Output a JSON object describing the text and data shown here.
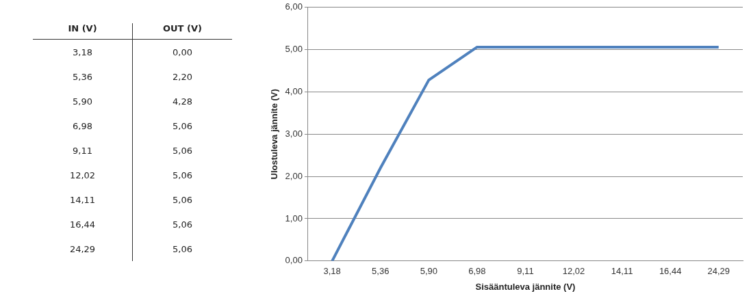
{
  "chart_data": [
    {
      "type": "other",
      "annotations": [
        "IN (V)",
        "OUT (V)",
        "3,18",
        "0,00",
        "5,36",
        "2,20",
        "5,90",
        "4,28",
        "6,98",
        "5,06",
        "9,11",
        "5,06",
        "12,02",
        "5,06",
        "14,11",
        "5,06",
        "16,44",
        "5,06",
        "24,29",
        "5,06"
      ]
    },
    {
      "type": "line",
      "xlabel": "Sisääntuleva jännite (V)",
      "ylabel": "Ulostuleva jännite (V)",
      "categories": [
        "3,18",
        "5,36",
        "5,90",
        "6,98",
        "9,11",
        "12,02",
        "14,11",
        "16,44",
        "24,29"
      ],
      "series": [
        {
          "color": "#4f81bd",
          "values": [
            0,
            2.2,
            4.28,
            5.06,
            5.06,
            5.06,
            5.06,
            5.06,
            5.06
          ]
        }
      ],
      "ylim": [
        0,
        6
      ],
      "yticks": [
        {
          "value": 0,
          "label": "0,00"
        },
        {
          "value": 1,
          "label": "1,00"
        },
        {
          "value": 2,
          "label": "2,00"
        },
        {
          "value": 3,
          "label": "3,00"
        },
        {
          "value": 4,
          "label": "4,00"
        },
        {
          "value": 5,
          "label": "5,00"
        },
        {
          "value": 6,
          "label": "6,00"
        }
      ],
      "grid": "y",
      "legend": false,
      "marker": "none",
      "line_style": "solid"
    }
  ]
}
